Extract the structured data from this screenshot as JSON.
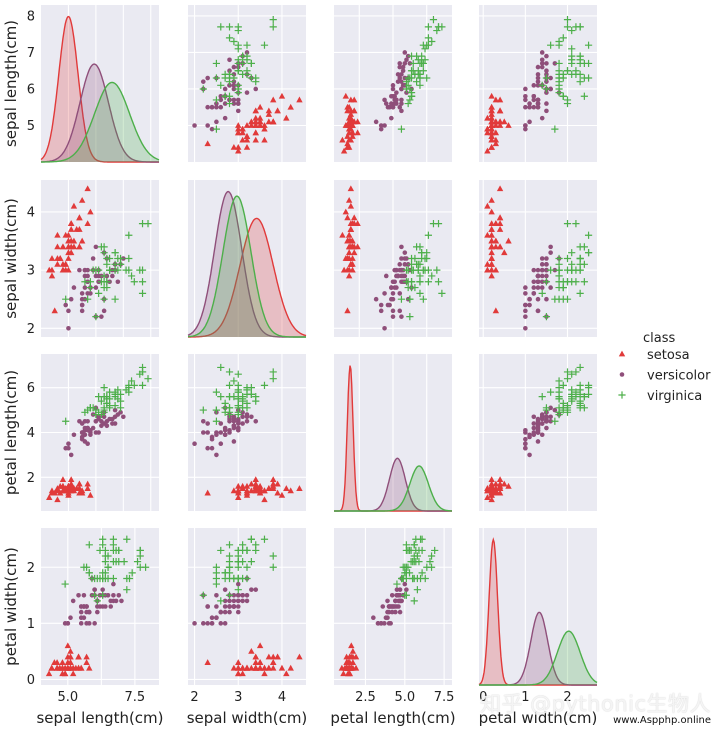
{
  "chart_data": {
    "type": "pairplot",
    "variables": [
      "sepal length(cm)",
      "sepal width(cm)",
      "petal length(cm)",
      "petal width(cm)"
    ],
    "legend": {
      "title": "class",
      "placement": "right",
      "entries": [
        {
          "label": "setosa",
          "marker": "triangle",
          "color": "#e13a3a"
        },
        {
          "label": "versicolor",
          "marker": "circle",
          "color": "#8f4f7a"
        },
        {
          "label": "virginica",
          "marker": "plus",
          "color": "#4daf4a"
        }
      ]
    },
    "axis_ranges": [
      [
        4,
        8.3
      ],
      [
        1.85,
        4.55
      ],
      [
        0.5,
        7.5
      ],
      [
        -0.1,
        2.7
      ]
    ],
    "ticks": [
      {
        "values": [
          5,
          6,
          7,
          8
        ],
        "labels": [
          "5",
          "6",
          "7",
          "8"
        ]
      },
      {
        "values": [
          2,
          3,
          4
        ],
        "labels": [
          "2",
          "3",
          "4"
        ]
      },
      {
        "values": [
          2,
          4,
          6
        ],
        "labels": [
          "2",
          "4",
          "6"
        ]
      },
      {
        "values": [
          0,
          1,
          2
        ],
        "labels": [
          "0",
          "1",
          "2"
        ]
      }
    ],
    "bottom_ticks": [
      {
        "values": [
          5,
          6.25,
          7.5
        ],
        "labels": [
          "5.0",
          "",
          "7.5"
        ]
      },
      {
        "values": [
          2,
          3,
          4
        ],
        "labels": [
          "2",
          "3",
          "4"
        ]
      },
      {
        "values": [
          2.5,
          5,
          7.5
        ],
        "labels": [
          "2.5",
          "5.0",
          "7.5"
        ]
      },
      {
        "values": [
          0,
          1,
          2
        ],
        "labels": [
          "0",
          "1",
          "2"
        ]
      }
    ],
    "bottom_range_override": {
      "0": [
        4,
        8.4
      ],
      "2": [
        0.5,
        8
      ]
    },
    "kde_components": [
      {
        "setosa": [
          5.0,
          0.35
        ],
        "versicolor": [
          5.94,
          0.52
        ],
        "virginica": [
          6.59,
          0.64
        ]
      },
      {
        "setosa": [
          3.42,
          0.38
        ],
        "versicolor": [
          2.77,
          0.31
        ],
        "virginica": [
          2.97,
          0.32
        ]
      },
      {
        "setosa": [
          1.46,
          0.17
        ],
        "versicolor": [
          4.26,
          0.47
        ],
        "virginica": [
          5.55,
          0.55
        ]
      },
      {
        "setosa": [
          0.24,
          0.1
        ],
        "versicolor": [
          1.33,
          0.2
        ],
        "virginica": [
          2.03,
          0.27
        ]
      }
    ],
    "grid": true,
    "background": "#eaeaf2",
    "series": [
      {
        "name": "setosa",
        "marker": "triangle",
        "color": "#e13a3a",
        "points": [
          [
            5.1,
            3.5,
            1.4,
            0.2
          ],
          [
            4.9,
            3.0,
            1.4,
            0.2
          ],
          [
            4.7,
            3.2,
            1.3,
            0.2
          ],
          [
            4.6,
            3.1,
            1.5,
            0.2
          ],
          [
            5.0,
            3.6,
            1.4,
            0.2
          ],
          [
            5.4,
            3.9,
            1.7,
            0.4
          ],
          [
            4.6,
            3.4,
            1.4,
            0.3
          ],
          [
            5.0,
            3.4,
            1.5,
            0.2
          ],
          [
            4.4,
            2.9,
            1.4,
            0.2
          ],
          [
            4.9,
            3.1,
            1.5,
            0.1
          ],
          [
            5.4,
            3.7,
            1.5,
            0.2
          ],
          [
            4.8,
            3.4,
            1.6,
            0.2
          ],
          [
            4.8,
            3.0,
            1.4,
            0.1
          ],
          [
            4.3,
            3.0,
            1.1,
            0.1
          ],
          [
            5.8,
            4.0,
            1.2,
            0.2
          ],
          [
            5.7,
            4.4,
            1.5,
            0.4
          ],
          [
            5.4,
            3.9,
            1.3,
            0.4
          ],
          [
            5.1,
            3.5,
            1.4,
            0.3
          ],
          [
            5.7,
            3.8,
            1.7,
            0.3
          ],
          [
            5.1,
            3.8,
            1.5,
            0.3
          ],
          [
            5.4,
            3.4,
            1.7,
            0.2
          ],
          [
            5.1,
            3.7,
            1.5,
            0.4
          ],
          [
            4.6,
            3.6,
            1.0,
            0.2
          ],
          [
            5.1,
            3.3,
            1.7,
            0.5
          ],
          [
            4.8,
            3.4,
            1.9,
            0.2
          ],
          [
            5.0,
            3.0,
            1.6,
            0.2
          ],
          [
            5.0,
            3.4,
            1.6,
            0.4
          ],
          [
            5.2,
            3.5,
            1.5,
            0.2
          ],
          [
            5.2,
            3.4,
            1.4,
            0.2
          ],
          [
            4.7,
            3.2,
            1.6,
            0.2
          ],
          [
            4.8,
            3.1,
            1.6,
            0.2
          ],
          [
            5.4,
            3.4,
            1.5,
            0.4
          ],
          [
            5.2,
            4.1,
            1.5,
            0.1
          ],
          [
            5.5,
            4.2,
            1.4,
            0.2
          ],
          [
            4.9,
            3.1,
            1.5,
            0.2
          ],
          [
            5.0,
            3.2,
            1.2,
            0.2
          ],
          [
            5.5,
            3.5,
            1.3,
            0.2
          ],
          [
            4.9,
            3.6,
            1.4,
            0.1
          ],
          [
            4.4,
            3.0,
            1.3,
            0.2
          ],
          [
            5.1,
            3.4,
            1.5,
            0.2
          ],
          [
            5.0,
            3.5,
            1.3,
            0.3
          ],
          [
            4.5,
            2.3,
            1.3,
            0.3
          ],
          [
            4.4,
            3.2,
            1.3,
            0.2
          ],
          [
            5.0,
            3.5,
            1.6,
            0.6
          ],
          [
            5.1,
            3.8,
            1.9,
            0.4
          ],
          [
            4.8,
            3.0,
            1.4,
            0.3
          ],
          [
            5.1,
            3.8,
            1.6,
            0.2
          ],
          [
            4.6,
            3.2,
            1.4,
            0.2
          ],
          [
            5.3,
            3.7,
            1.5,
            0.2
          ],
          [
            5.0,
            3.3,
            1.4,
            0.2
          ]
        ]
      },
      {
        "name": "versicolor",
        "marker": "circle",
        "color": "#8f4f7a",
        "points": [
          [
            7.0,
            3.2,
            4.7,
            1.4
          ],
          [
            6.4,
            3.2,
            4.5,
            1.5
          ],
          [
            6.9,
            3.1,
            4.9,
            1.5
          ],
          [
            5.5,
            2.3,
            4.0,
            1.3
          ],
          [
            6.5,
            2.8,
            4.6,
            1.5
          ],
          [
            5.7,
            2.8,
            4.5,
            1.3
          ],
          [
            6.3,
            3.3,
            4.7,
            1.6
          ],
          [
            4.9,
            2.4,
            3.3,
            1.0
          ],
          [
            6.6,
            2.9,
            4.6,
            1.3
          ],
          [
            5.2,
            2.7,
            3.9,
            1.4
          ],
          [
            5.0,
            2.0,
            3.5,
            1.0
          ],
          [
            5.9,
            3.0,
            4.2,
            1.5
          ],
          [
            6.0,
            2.2,
            4.0,
            1.0
          ],
          [
            6.1,
            2.9,
            4.7,
            1.4
          ],
          [
            5.6,
            2.9,
            3.6,
            1.3
          ],
          [
            6.7,
            3.1,
            4.4,
            1.4
          ],
          [
            5.6,
            3.0,
            4.5,
            1.5
          ],
          [
            5.8,
            2.7,
            4.1,
            1.0
          ],
          [
            6.2,
            2.2,
            4.5,
            1.5
          ],
          [
            5.6,
            2.5,
            3.9,
            1.1
          ],
          [
            5.9,
            3.2,
            4.8,
            1.8
          ],
          [
            6.1,
            2.8,
            4.0,
            1.3
          ],
          [
            6.3,
            2.5,
            4.9,
            1.5
          ],
          [
            6.1,
            2.8,
            4.7,
            1.2
          ],
          [
            6.4,
            2.9,
            4.3,
            1.3
          ],
          [
            6.6,
            3.0,
            4.4,
            1.4
          ],
          [
            6.8,
            2.8,
            4.8,
            1.4
          ],
          [
            6.7,
            3.0,
            5.0,
            1.7
          ],
          [
            6.0,
            2.9,
            4.5,
            1.5
          ],
          [
            5.7,
            2.6,
            3.5,
            1.0
          ],
          [
            5.5,
            2.4,
            3.8,
            1.1
          ],
          [
            5.5,
            2.4,
            3.7,
            1.0
          ],
          [
            5.8,
            2.7,
            3.9,
            1.2
          ],
          [
            6.0,
            2.7,
            5.1,
            1.6
          ],
          [
            5.4,
            3.0,
            4.5,
            1.5
          ],
          [
            6.0,
            3.4,
            4.5,
            1.6
          ],
          [
            6.7,
            3.1,
            4.7,
            1.5
          ],
          [
            6.3,
            2.3,
            4.4,
            1.3
          ],
          [
            5.6,
            3.0,
            4.1,
            1.3
          ],
          [
            5.5,
            2.5,
            4.0,
            1.3
          ],
          [
            5.5,
            2.6,
            4.4,
            1.2
          ],
          [
            6.1,
            3.0,
            4.6,
            1.4
          ],
          [
            5.8,
            2.6,
            4.0,
            1.2
          ],
          [
            5.0,
            2.3,
            3.3,
            1.0
          ],
          [
            5.6,
            2.7,
            4.2,
            1.3
          ],
          [
            5.7,
            3.0,
            4.2,
            1.2
          ],
          [
            5.7,
            2.9,
            4.2,
            1.3
          ],
          [
            6.2,
            2.9,
            4.3,
            1.3
          ],
          [
            5.1,
            2.5,
            3.0,
            1.1
          ],
          [
            5.7,
            2.8,
            4.1,
            1.3
          ]
        ]
      },
      {
        "name": "virginica",
        "marker": "plus",
        "color": "#4daf4a",
        "points": [
          [
            6.3,
            3.3,
            6.0,
            2.5
          ],
          [
            5.8,
            2.7,
            5.1,
            1.9
          ],
          [
            7.1,
            3.0,
            5.9,
            2.1
          ],
          [
            6.3,
            2.9,
            5.6,
            1.8
          ],
          [
            6.5,
            3.0,
            5.8,
            2.2
          ],
          [
            7.6,
            3.0,
            6.6,
            2.1
          ],
          [
            4.9,
            2.5,
            4.5,
            1.7
          ],
          [
            7.3,
            2.9,
            6.3,
            1.8
          ],
          [
            6.7,
            2.5,
            5.8,
            1.8
          ],
          [
            7.2,
            3.6,
            6.1,
            2.5
          ],
          [
            6.5,
            3.2,
            5.1,
            2.0
          ],
          [
            6.4,
            2.7,
            5.3,
            1.9
          ],
          [
            6.8,
            3.0,
            5.5,
            2.1
          ],
          [
            5.7,
            2.5,
            5.0,
            2.0
          ],
          [
            5.8,
            2.8,
            5.1,
            2.4
          ],
          [
            6.4,
            3.2,
            5.3,
            2.3
          ],
          [
            6.5,
            3.0,
            5.5,
            1.8
          ],
          [
            7.7,
            3.8,
            6.7,
            2.2
          ],
          [
            7.7,
            2.6,
            6.9,
            2.3
          ],
          [
            6.0,
            2.2,
            5.0,
            1.5
          ],
          [
            6.9,
            3.2,
            5.7,
            2.3
          ],
          [
            5.6,
            2.8,
            4.9,
            2.0
          ],
          [
            7.7,
            2.8,
            6.7,
            2.0
          ],
          [
            6.3,
            2.7,
            4.9,
            1.8
          ],
          [
            6.7,
            3.3,
            5.7,
            2.1
          ],
          [
            7.2,
            3.2,
            6.0,
            1.8
          ],
          [
            6.2,
            2.8,
            4.8,
            1.8
          ],
          [
            6.1,
            3.0,
            4.9,
            1.8
          ],
          [
            6.4,
            2.8,
            5.6,
            2.1
          ],
          [
            7.2,
            3.0,
            5.8,
            1.6
          ],
          [
            7.4,
            2.8,
            6.1,
            1.9
          ],
          [
            7.9,
            3.8,
            6.4,
            2.0
          ],
          [
            6.4,
            2.8,
            5.6,
            2.2
          ],
          [
            6.3,
            2.8,
            5.1,
            1.5
          ],
          [
            6.1,
            2.6,
            5.6,
            1.4
          ],
          [
            7.7,
            3.0,
            6.1,
            2.3
          ],
          [
            6.3,
            3.4,
            5.6,
            2.4
          ],
          [
            6.4,
            3.1,
            5.5,
            1.8
          ],
          [
            6.0,
            3.0,
            4.8,
            1.8
          ],
          [
            6.9,
            3.1,
            5.4,
            2.1
          ],
          [
            6.7,
            3.1,
            5.6,
            2.4
          ],
          [
            6.9,
            3.1,
            5.1,
            2.3
          ],
          [
            5.8,
            2.7,
            5.1,
            1.9
          ],
          [
            6.8,
            3.2,
            5.9,
            2.3
          ],
          [
            6.7,
            3.3,
            5.7,
            2.5
          ],
          [
            6.7,
            3.0,
            5.2,
            2.3
          ],
          [
            6.3,
            2.5,
            5.0,
            1.9
          ],
          [
            6.5,
            3.0,
            5.2,
            2.0
          ],
          [
            6.2,
            3.4,
            5.4,
            2.3
          ],
          [
            5.9,
            3.0,
            5.1,
            1.8
          ]
        ]
      }
    ]
  },
  "watermark": {
    "text": "知乎 @pythonic生物人",
    "site": "www.Aspphp.online"
  }
}
